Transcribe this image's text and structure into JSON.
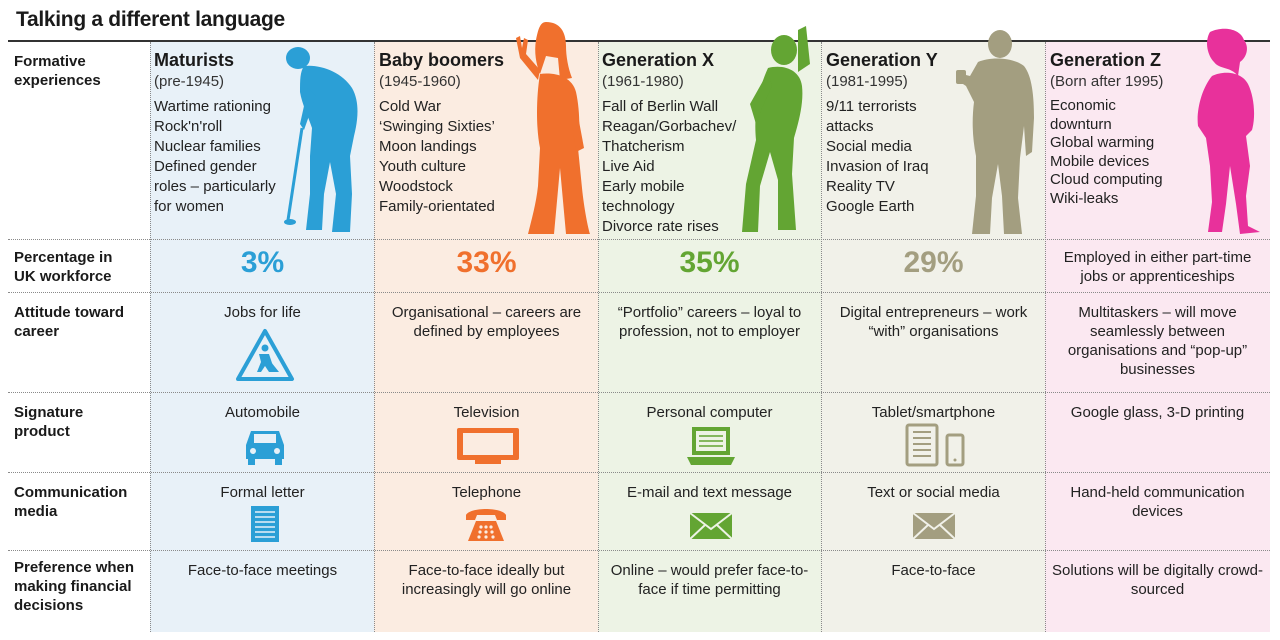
{
  "title": "Talking a different language",
  "row_labels": {
    "formative": "Formative experiences",
    "percentage": "Percentage in UK workforce",
    "attitude": "Attitude toward career",
    "product": "Signature product",
    "communication": "Communication media",
    "preference": "Preference when making financial decisions"
  },
  "colors": {
    "maturists": "#2b9fd6",
    "boomers": "#f0702d",
    "genx": "#63a533",
    "geny": "#a39e80",
    "genz": "#e8319b"
  },
  "generations": [
    {
      "name": "Maturists",
      "years": "(pre-1945)",
      "experiences": [
        "Wartime rationing",
        "Rock'n'roll",
        "Nuclear families",
        "Defined gender",
        "roles – particularly",
        "for women"
      ],
      "percentage": "3%",
      "attitude": "Jobs for life",
      "attitude_icon": "road-work-sign-icon",
      "product": "Automobile",
      "product_icon": "car-icon",
      "communication": "Formal letter",
      "communication_icon": "letter-icon",
      "preference": "Face-to-face meetings"
    },
    {
      "name": "Baby boomers",
      "years": "(1945-1960)",
      "experiences": [
        "Cold War",
        "‘Swinging Sixties’",
        "Moon landings",
        "Youth culture",
        "Woodstock",
        "Family-orientated"
      ],
      "percentage": "33%",
      "attitude": "Organisational – careers are defined by employees",
      "product": "Television",
      "product_icon": "television-icon",
      "communication": "Telephone",
      "communication_icon": "telephone-icon",
      "preference": "Face-to-face ideally but increasingly will go online"
    },
    {
      "name": "Generation X",
      "years": "(1961-1980)",
      "experiences": [
        "Fall of Berlin Wall",
        "Reagan/Gorbachev/",
        "Thatcherism",
        "Live Aid",
        "Early mobile",
        "technology",
        "Divorce rate rises"
      ],
      "percentage": "35%",
      "attitude": "“Portfolio” careers – loyal to profession, not to employer",
      "product": "Personal computer",
      "product_icon": "laptop-icon",
      "communication": "E-mail and text message",
      "communication_icon": "envelope-icon",
      "preference": "Online – would prefer face-to-face if time permitting"
    },
    {
      "name": "Generation Y",
      "years": "(1981-1995)",
      "experiences": [
        "9/11 terrorists",
        "attacks",
        "Social media",
        "Invasion of Iraq",
        "Reality TV",
        "Google Earth"
      ],
      "percentage": "29%",
      "attitude": "Digital entrepreneurs – work “with” organisations",
      "product": "Tablet/smartphone",
      "product_icon": "tablet-smartphone-icon",
      "communication": "Text or social media",
      "communication_icon": "envelope-icon",
      "preference": "Face-to-face"
    },
    {
      "name": "Generation Z",
      "years": "(Born after 1995)",
      "experiences": [
        "Economic",
        "downturn",
        "Global warming",
        "Mobile devices",
        "Cloud computing",
        "Wiki-leaks"
      ],
      "percentage": "Employed in either part-time jobs or apprenticeships",
      "attitude": "Multitaskers – will move seamlessly between organisations and “pop-up” businesses",
      "product": "Google glass, 3-D printing",
      "communication": "Hand-held communication devices",
      "preference": "Solutions will be digitally crowd-sourced"
    }
  ]
}
